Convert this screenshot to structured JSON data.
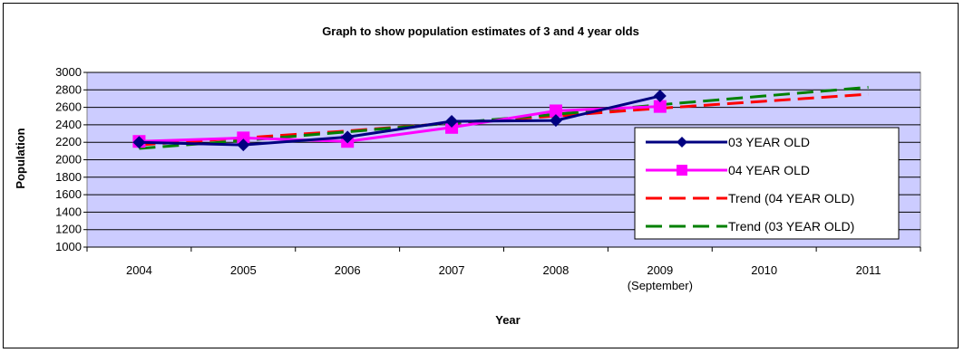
{
  "chart_data": {
    "type": "line",
    "title": "Graph to show population estimates of 3 and 4 year olds",
    "xlabel": "Year",
    "ylabel": "Population",
    "categories": [
      "2004",
      "2005",
      "2006",
      "2007",
      "2008",
      "2009",
      "2010",
      "2011"
    ],
    "category_sublabels": [
      "",
      "",
      "",
      "",
      "",
      "(September)",
      "",
      ""
    ],
    "ylim": [
      1000,
      3000
    ],
    "yticks": [
      1000,
      1200,
      1400,
      1600,
      1800,
      2000,
      2200,
      2400,
      2600,
      2800,
      3000
    ],
    "grid": true,
    "legend_position": "right",
    "plot_background": "#ccccff",
    "series": [
      {
        "name": "03 YEAR OLD",
        "color": "#000080",
        "marker": "diamond",
        "dash": "solid",
        "values": [
          2200,
          2170,
          2260,
          2440,
          2450,
          2730,
          null,
          null
        ]
      },
      {
        "name": "04 YEAR OLD",
        "color": "#ff00ff",
        "marker": "square",
        "dash": "solid",
        "values": [
          2210,
          2250,
          2210,
          2370,
          2560,
          2610,
          null,
          null
        ]
      },
      {
        "name": "Trend (04 YEAR OLD)",
        "color": "#ff0000",
        "marker": "none",
        "dash": "dashed",
        "values": [
          2170,
          2250,
          2330,
          2420,
          2500,
          2590,
          2670,
          2750
        ]
      },
      {
        "name": "Trend (03 YEAR OLD)",
        "color": "#008000",
        "marker": "none",
        "dash": "dashed",
        "values": [
          2130,
          2220,
          2320,
          2420,
          2520,
          2630,
          2730,
          2830
        ]
      }
    ]
  }
}
